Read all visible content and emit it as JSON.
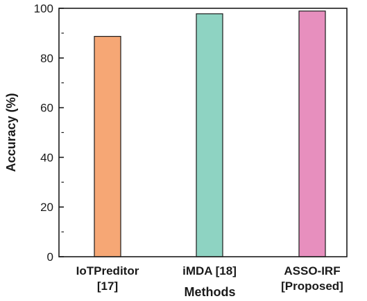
{
  "chart_data": {
    "type": "bar",
    "categories": [
      {
        "lines": [
          "IoTPreditor",
          "[17]"
        ],
        "value": 88.7,
        "color": "#f6a775"
      },
      {
        "lines": [
          "iMDA [18]"
        ],
        "value": 97.8,
        "color": "#8ed3c2"
      },
      {
        "lines": [
          "ASSO-IRF",
          "[Proposed]"
        ],
        "value": 98.9,
        "color": "#e78fbe"
      }
    ],
    "values": [
      88.7,
      97.8,
      98.9
    ],
    "title": "",
    "xlabel": "Methods",
    "ylabel": "Accuracy (%)",
    "ylim": [
      0,
      100
    ],
    "yticks": [
      "0",
      "20",
      "40",
      "60",
      "80",
      "100"
    ],
    "grid": false,
    "legend": "none"
  }
}
